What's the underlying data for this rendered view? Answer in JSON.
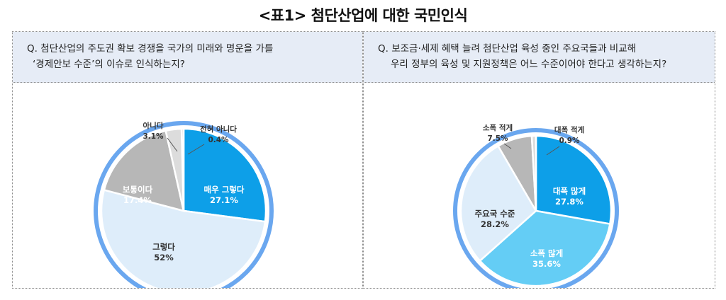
{
  "title": "<표1> 첨단산업에 대한 국민인식",
  "colors": {
    "ring": "#6aa7ef",
    "question_bg": "#e6ecf6"
  },
  "left_panel": {
    "question_line1": "Q. 첨단산업의 주도권 확보 경쟁을 국가의 미래와 명운을 가를",
    "question_line2": "‘경제안보 수준’의 이슈로 인식하는지?"
  },
  "right_panel": {
    "question_line1": "Q. 보조금·세제 혜택 늘려 첨단산업 육성 중인 주요국들과 비교해",
    "question_line2": "우리 정부의 육성 및 지원정책은 어느 수준이어야 한다고 생각하는지?"
  },
  "chart_data": [
    {
      "type": "pie",
      "title": "",
      "slices": [
        {
          "label": "매우 그렇다",
          "value": 27.1,
          "value_text": "27.1%",
          "color": "#0d9fe8"
        },
        {
          "label": "그렇다",
          "value": 52,
          "value_text": "52%",
          "color": "#deedfa"
        },
        {
          "label": "보통이다",
          "value": 17.4,
          "value_text": "17.4%",
          "color": "#b7b7b7"
        },
        {
          "label": "아니다",
          "value": 3.1,
          "value_text": "3.1%",
          "color": "#dcdcdc"
        },
        {
          "label": "전혀 아니다",
          "value": 0.4,
          "value_text": "0.4%",
          "color": "#c9c9c9"
        }
      ]
    },
    {
      "type": "pie",
      "title": "",
      "slices": [
        {
          "label": "대폭 많게",
          "value": 27.8,
          "value_text": "27.8%",
          "color": "#0d9fe8"
        },
        {
          "label": "소폭 많게",
          "value": 35.6,
          "value_text": "35.6%",
          "color": "#64cdf5"
        },
        {
          "label": "주요국 수준",
          "value": 28.2,
          "value_text": "28.2%",
          "color": "#deedfa"
        },
        {
          "label": "소폭 적게",
          "value": 7.5,
          "value_text": "7.5%",
          "color": "#b7b7b7"
        },
        {
          "label": "대폭 적게",
          "value": 0.9,
          "value_text": "0.9%",
          "color": "#dcdcdc"
        }
      ]
    }
  ]
}
